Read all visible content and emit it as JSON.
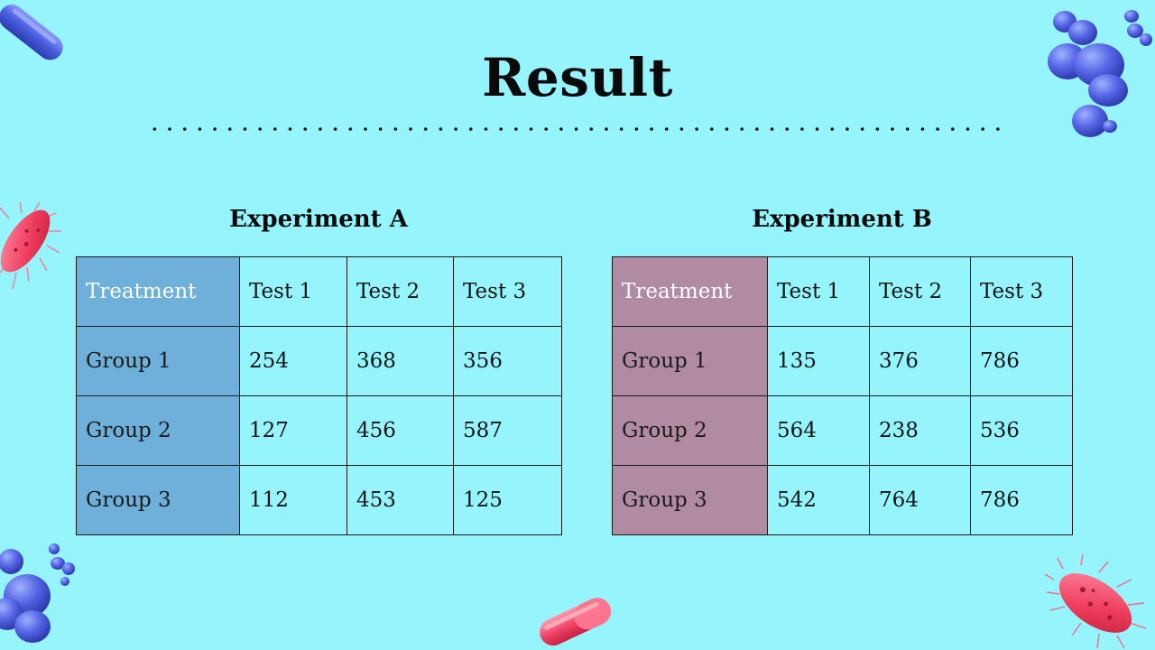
{
  "slide": {
    "title": "Result"
  },
  "experiment_a": {
    "title": "Experiment A",
    "header_color": "#6fb0da",
    "columns": [
      "Treatment",
      "Test 1",
      "Test 2",
      "Test 3"
    ],
    "rows": [
      [
        "Group 1",
        "254",
        "368",
        "356"
      ],
      [
        "Group 2",
        "127",
        "456",
        "587"
      ],
      [
        "Group 3",
        "112",
        "453",
        "125"
      ]
    ]
  },
  "experiment_b": {
    "title": "Experiment B",
    "header_color": "#b08ba2",
    "columns": [
      "Treatment",
      "Test 1",
      "Test 2",
      "Test 3"
    ],
    "rows": [
      [
        "Group 1",
        "135",
        "376",
        "786"
      ],
      [
        "Group 2",
        "564",
        "238",
        "536"
      ],
      [
        "Group 3",
        "542",
        "764",
        "786"
      ]
    ]
  },
  "decorations": {
    "icons": [
      "capsule-icon",
      "cocci-cluster-icon",
      "bacterium-icon"
    ],
    "background_color": "#95f4fc"
  }
}
